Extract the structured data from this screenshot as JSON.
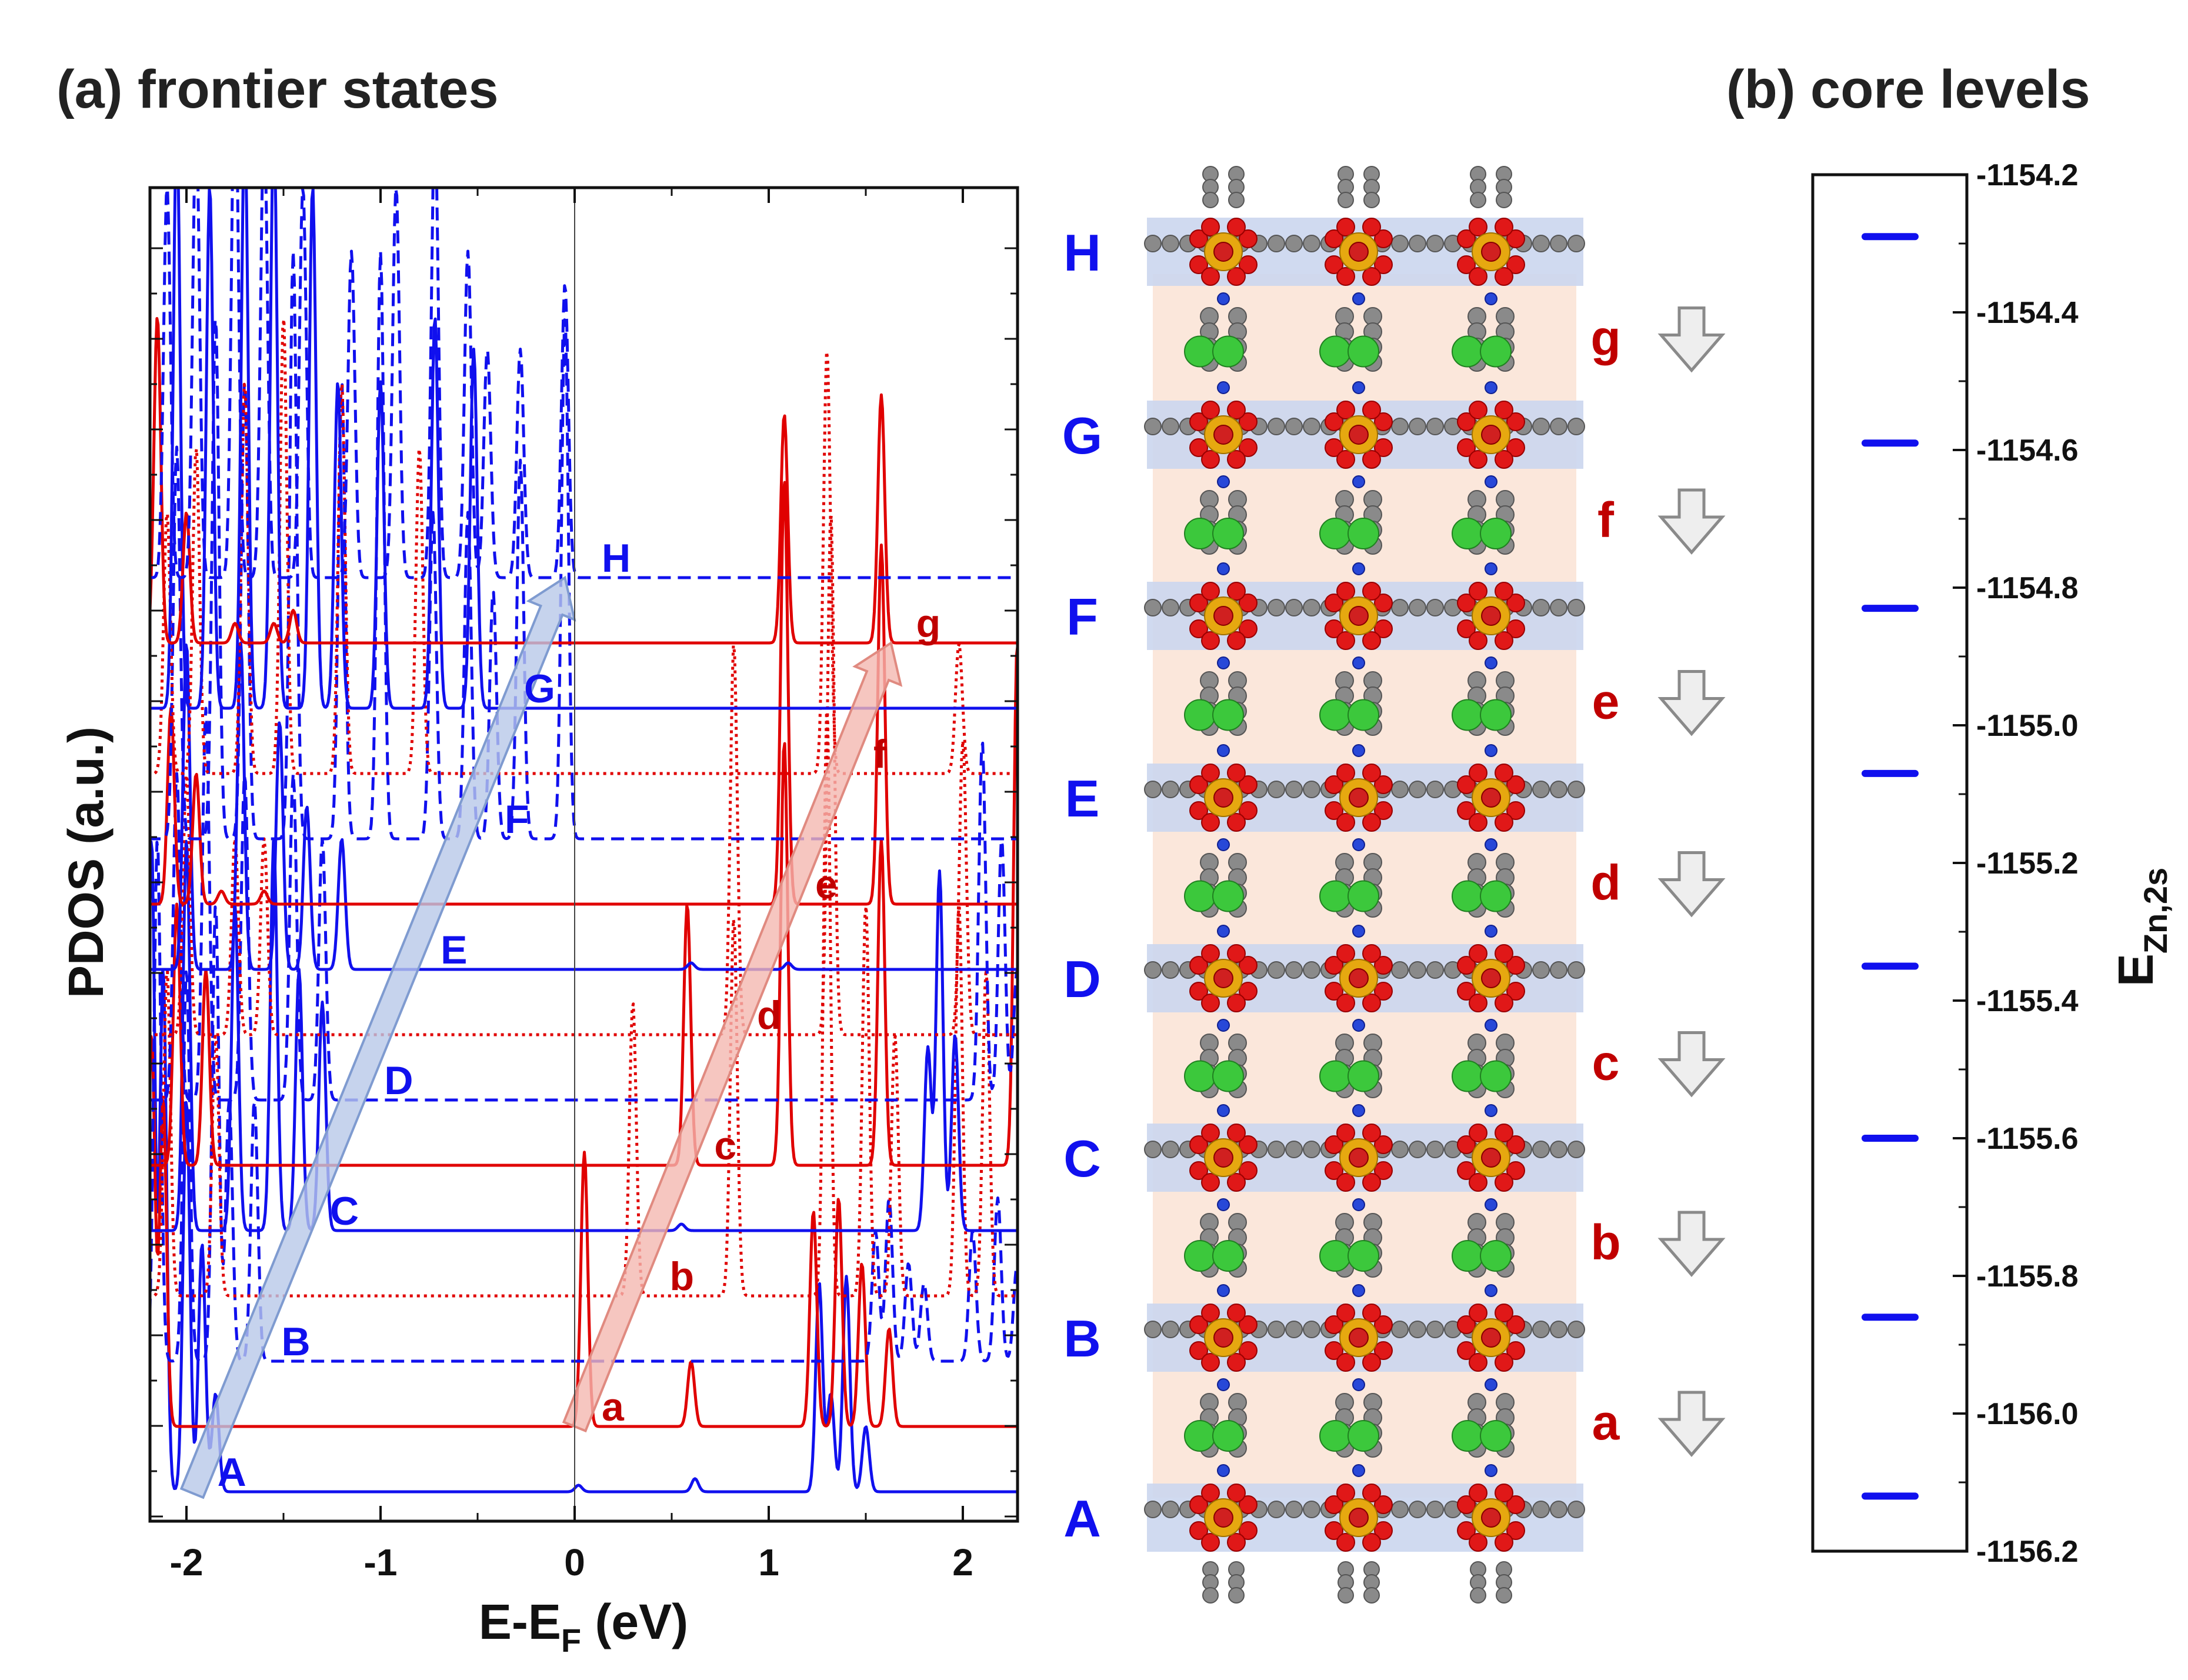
{
  "panel_a_title": "(a) frontier states",
  "panel_b_title": "(b) core levels",
  "colors": {
    "blue": "#1010ee",
    "red": "#e00000",
    "blue_arrow": "#b8c8e8",
    "red_arrow": "#f4b8b0"
  },
  "chart_data": [
    {
      "type": "line",
      "title": "(a) frontier states",
      "xlabel": "E-E",
      "xlabel_sub": "F",
      "xlabel_unit": " (eV)",
      "ylabel": "PDOS (a.u.)",
      "xlim": [
        -2.2,
        2.3
      ],
      "xticks": [
        -2,
        -1,
        0,
        1,
        2
      ],
      "xtick_labels": [
        "-2",
        "-1",
        "0",
        "1",
        "2"
      ],
      "baseline_unit": "offset",
      "series": [
        {
          "name": "A",
          "color": "blue",
          "style": "solid",
          "baseline": 0.0,
          "x_label": -1.78,
          "peaks": [
            [
              -2.18,
              10
            ],
            [
              -2.12,
              8
            ],
            [
              -2.0,
              6
            ],
            [
              -1.92,
              3.8
            ],
            [
              -1.85,
              1.5
            ],
            [
              1.26,
              3.2
            ],
            [
              1.32,
              1.5
            ],
            [
              1.4,
              3.3
            ],
            [
              1.5,
              1.0
            ],
            [
              0.02,
              0.1
            ],
            [
              0.62,
              0.2
            ]
          ]
        },
        {
          "name": "a",
          "color": "red",
          "style": "solid",
          "baseline": 1.0,
          "x_label": 0.2,
          "peaks": [
            [
              -2.18,
              6
            ],
            [
              -2.12,
              5
            ],
            [
              0.05,
              4.2
            ],
            [
              0.6,
              1.0
            ],
            [
              1.23,
              3.3
            ],
            [
              1.36,
              3.5
            ],
            [
              1.48,
              2.5
            ],
            [
              1.62,
              1.5
            ]
          ]
        },
        {
          "name": "B",
          "color": "blue",
          "style": "dashed",
          "baseline": 2.0,
          "x_label": -1.45,
          "peaks": [
            [
              -2.15,
              8
            ],
            [
              -2.0,
              6
            ],
            [
              -1.85,
              7
            ],
            [
              -1.78,
              4
            ],
            [
              -1.65,
              4
            ],
            [
              1.55,
              2.0
            ],
            [
              1.62,
              2.5
            ],
            [
              1.72,
              1.5
            ],
            [
              1.8,
              1.2
            ],
            [
              2.05,
              2.0
            ],
            [
              2.18,
              2.5
            ],
            [
              2.28,
              1.5
            ]
          ]
        },
        {
          "name": "b",
          "color": "red",
          "style": "dotted",
          "baseline": 3.0,
          "x_label": 0.55,
          "peaks": [
            [
              -2.1,
              5
            ],
            [
              -1.85,
              4
            ],
            [
              0.3,
              4.5
            ],
            [
              0.82,
              5.8
            ],
            [
              1.3,
              9
            ],
            [
              1.5,
              6
            ],
            [
              1.65,
              4
            ],
            [
              1.98,
              6
            ],
            [
              2.12,
              5
            ]
          ]
        },
        {
          "name": "C",
          "color": "blue",
          "style": "solid",
          "baseline": 4.0,
          "x_label": -1.2,
          "peaks": [
            [
              -2.0,
              6
            ],
            [
              -1.75,
              5
            ],
            [
              -1.55,
              6
            ],
            [
              -1.42,
              4
            ],
            [
              -1.3,
              3.5
            ],
            [
              0.55,
              0.1
            ],
            [
              1.82,
              2.8
            ],
            [
              1.88,
              5.5
            ],
            [
              1.96,
              3.0
            ]
          ]
        },
        {
          "name": "c",
          "color": "red",
          "style": "solid",
          "baseline": 5.0,
          "x_label": 0.78,
          "peaks": [
            [
              -2.05,
              4
            ],
            [
              -1.9,
              3
            ],
            [
              0.58,
              4.0
            ],
            [
              1.08,
              6.5
            ],
            [
              1.58,
              5.0
            ],
            [
              2.28,
              8
            ]
          ]
        },
        {
          "name": "D",
          "color": "blue",
          "style": "dashed",
          "baseline": 6.0,
          "x_label": -0.92,
          "peaks": [
            [
              -2.05,
              5
            ],
            [
              -1.9,
              6
            ],
            [
              -1.7,
              5
            ],
            [
              -1.45,
              5
            ],
            [
              -1.3,
              4
            ],
            [
              2.1,
              5.5
            ],
            [
              2.2,
              4.0
            ],
            [
              2.28,
              2.0
            ]
          ]
        },
        {
          "name": "d",
          "color": "red",
          "style": "dotted",
          "baseline": 7.0,
          "x_label": 1.0,
          "peaks": [
            [
              -2.0,
              4
            ],
            [
              -1.75,
              3
            ],
            [
              -1.6,
              3
            ],
            [
              0.82,
              6.0
            ],
            [
              1.32,
              8.0
            ],
            [
              2.0,
              4.5
            ]
          ]
        },
        {
          "name": "E",
          "color": "blue",
          "style": "solid",
          "baseline": 8.0,
          "x_label": -0.63,
          "peaks": [
            [
              -2.0,
              5
            ],
            [
              -1.72,
              5
            ],
            [
              -1.52,
              3.8
            ],
            [
              -1.38,
              2.5
            ],
            [
              -1.2,
              2.0
            ],
            [
              0.6,
              0.1
            ],
            [
              1.1,
              0.1
            ]
          ]
        },
        {
          "name": "e",
          "color": "red",
          "style": "solid",
          "baseline": 9.0,
          "x_label": 1.3,
          "peaks": [
            [
              -2.08,
              3
            ],
            [
              -1.95,
              2
            ],
            [
              -1.82,
              0.2
            ],
            [
              -1.6,
              0.2
            ],
            [
              1.08,
              6.5
            ],
            [
              1.58,
              5.5
            ]
          ]
        },
        {
          "name": "F",
          "color": "blue",
          "style": "dashed",
          "baseline": 10.0,
          "x_label": -0.3,
          "peaks": [
            [
              -2.05,
              6
            ],
            [
              -1.85,
              8
            ],
            [
              -1.7,
              7
            ],
            [
              -1.45,
              9
            ],
            [
              -1.2,
              7
            ],
            [
              -1.0,
              9
            ],
            [
              -0.73,
              5
            ],
            [
              -0.55,
              5
            ],
            [
              -0.42,
              3.8
            ],
            [
              -0.28,
              5.8
            ],
            [
              -0.05,
              8
            ]
          ]
        },
        {
          "name": "f",
          "color": "red",
          "style": "dotted",
          "baseline": 11.0,
          "x_label": 1.6,
          "peaks": [
            [
              -2.1,
              4
            ],
            [
              -1.95,
              5
            ],
            [
              -1.7,
              6
            ],
            [
              -1.5,
              7
            ],
            [
              -1.2,
              6
            ],
            [
              -0.8,
              5
            ],
            [
              1.3,
              6.5
            ],
            [
              1.98,
              2.0
            ]
          ]
        },
        {
          "name": "G",
          "color": "blue",
          "style": "solid",
          "baseline": 12.0,
          "x_label": -0.2,
          "peaks": [
            [
              -2.05,
              9
            ],
            [
              -1.88,
              8
            ],
            [
              -1.7,
              9
            ],
            [
              -1.55,
              9
            ],
            [
              -1.35,
              8
            ],
            [
              -1.22,
              5
            ],
            [
              -1.0,
              5
            ],
            [
              -0.72,
              6
            ],
            [
              -0.52,
              5.5
            ]
          ]
        },
        {
          "name": "g",
          "color": "red",
          "style": "solid",
          "baseline": 13.0,
          "x_label": 1.82,
          "peaks": [
            [
              -2.15,
              5
            ],
            [
              -2.0,
              2
            ],
            [
              -1.75,
              0.3
            ],
            [
              -1.55,
              0.3
            ],
            [
              -1.45,
              0.5
            ],
            [
              1.08,
              3.5
            ],
            [
              1.58,
              3.8
            ]
          ]
        },
        {
          "name": "H",
          "color": "blue",
          "style": "dashed",
          "baseline": 14.0,
          "x_label": 0.2,
          "peaks": [
            [
              -2.1,
              6
            ],
            [
              -1.95,
              7
            ],
            [
              -1.75,
              8
            ],
            [
              -1.6,
              7
            ],
            [
              -1.4,
              6
            ],
            [
              -1.15,
              5
            ],
            [
              -0.92,
              6
            ],
            [
              -0.72,
              7
            ],
            [
              -0.55,
              5
            ],
            [
              -0.45,
              3.5
            ],
            [
              -0.28,
              3.5
            ],
            [
              -0.05,
              4.5
            ]
          ]
        }
      ],
      "arrows": [
        {
          "color": "blue",
          "from": {
            "x": -1.97,
            "offset": -0.02
          },
          "to": {
            "x": -0.05,
            "offset": 14.0
          }
        },
        {
          "color": "red",
          "from": {
            "x": 0.0,
            "offset": 1.0
          },
          "to": {
            "x": 1.63,
            "offset": 13.0
          }
        }
      ]
    },
    {
      "type": "scatter",
      "title": "(b) core levels",
      "ylabel": "E",
      "ylabel_sub": "Zn,2s",
      "ylim": [
        -1156.2,
        -1154.2
      ],
      "yticks": [
        -1154.2,
        -1154.4,
        -1154.6,
        -1154.8,
        -1155.0,
        -1155.2,
        -1155.4,
        -1155.6,
        -1155.8,
        -1156.0,
        -1156.2
      ],
      "ytick_labels": [
        "-1154.2",
        "-1154.4",
        "-1154.6",
        "-1154.8",
        "-1155.0",
        "-1155.2",
        "-1155.4",
        "-1155.6",
        "-1155.8",
        "-1156.0",
        "-1156.2"
      ],
      "levels": [
        -1154.29,
        -1154.59,
        -1154.83,
        -1155.07,
        -1155.35,
        -1155.6,
        -1155.86,
        -1156.12
      ]
    }
  ],
  "structure": {
    "layer_labels": [
      "H",
      "G",
      "F",
      "E",
      "D",
      "C",
      "B",
      "A"
    ],
    "spacer_labels": [
      "g",
      "f",
      "e",
      "d",
      "c",
      "b",
      "a"
    ]
  }
}
